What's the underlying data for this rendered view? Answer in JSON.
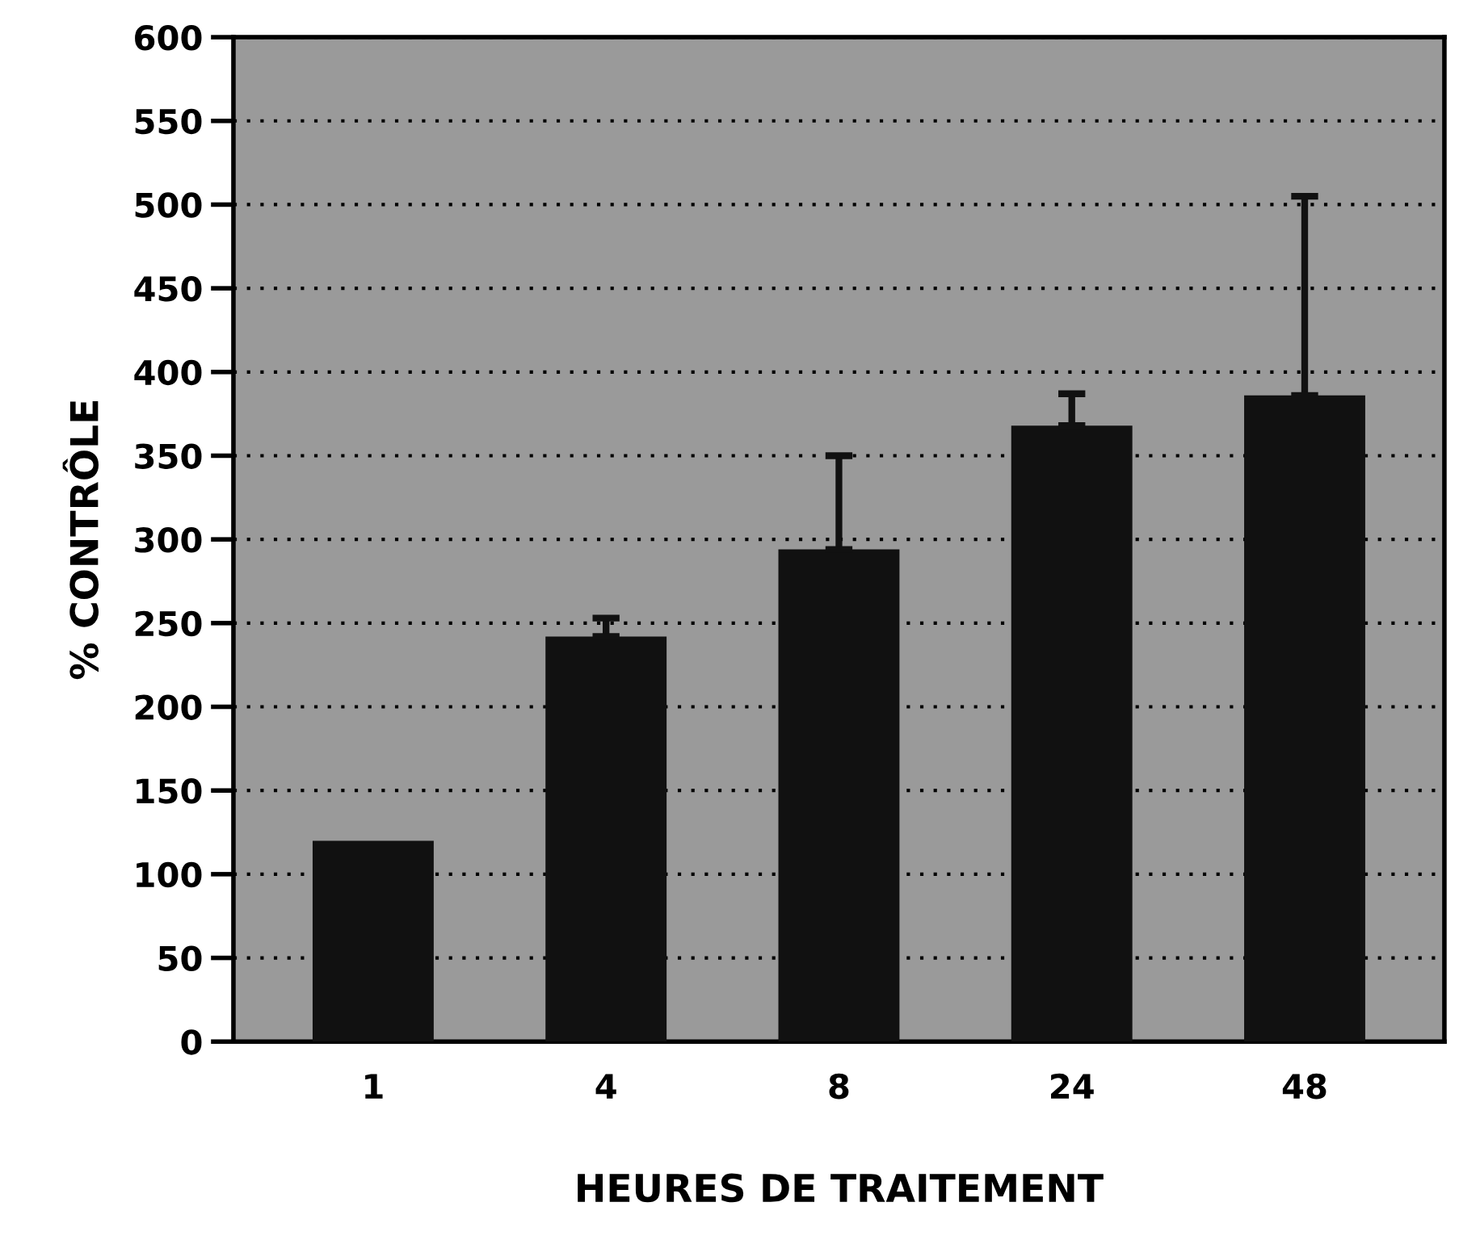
{
  "chart_data": {
    "type": "bar",
    "xlabel": "HEURES DE TRAITEMENT",
    "ylabel": "% CONTRÔLE",
    "categories": [
      "1",
      "4",
      "8",
      "24",
      "48"
    ],
    "values": [
      120,
      242,
      294,
      368,
      386
    ],
    "errors": [
      null,
      [
        242,
        253
      ],
      [
        294,
        350
      ],
      [
        368,
        387
      ],
      [
        386,
        505
      ]
    ],
    "color": "#111111",
    "ylim": [
      0,
      600
    ],
    "yticks": [
      0,
      50,
      100,
      150,
      200,
      250,
      300,
      350,
      400,
      450,
      500,
      550,
      600
    ],
    "grid": "y"
  }
}
